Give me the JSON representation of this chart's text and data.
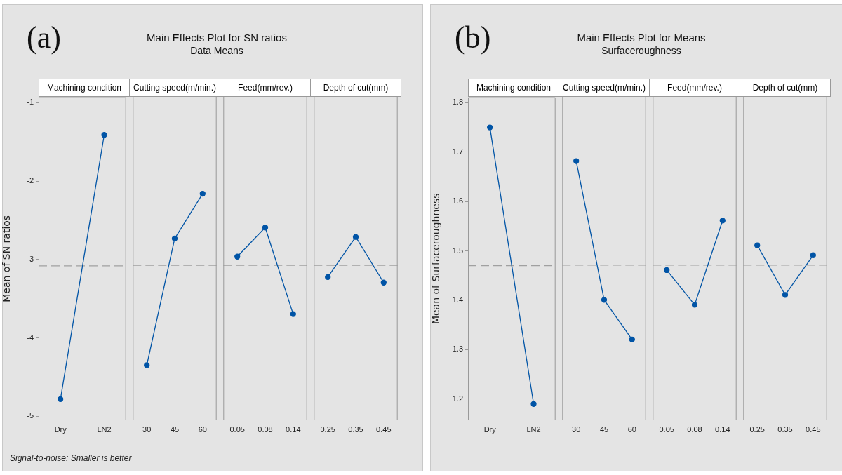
{
  "chart_data": [
    {
      "type": "line",
      "title": "Machining condition",
      "ylabel": "Mean of SN ratios",
      "categories": [
        "Dry",
        "LN2"
      ],
      "values": [
        -4.78,
        -1.41
      ],
      "color": "#0054a6",
      "marker": "circle",
      "line_style": "solid",
      "ylim": [
        -5.05,
        -0.93
      ],
      "yticks": [
        -5,
        -4,
        -3,
        -2,
        -1
      ],
      "ref_lines": [
        {
          "axis": "y",
          "value": -3.08,
          "color": "#a0a0a0",
          "line_style": "dashed"
        }
      ],
      "annotations": [
        "(a)",
        "Main Effects Plot for SN ratios",
        "Data Means",
        "Signal-to-noise: Smaller is better"
      ]
    },
    {
      "type": "line",
      "title": "Cutting speed(m/min.)",
      "categories": [
        "30",
        "45",
        "60"
      ],
      "values": [
        -4.35,
        -2.74,
        -2.17
      ],
      "color": "#0054a6",
      "marker": "circle",
      "line_style": "solid",
      "ylim": [
        -5.05,
        -0.93
      ],
      "yticks": [
        -5,
        -4,
        -3,
        -2,
        -1
      ],
      "tick_labels": "x",
      "ref_lines": [
        {
          "axis": "y",
          "value": -3.08,
          "color": "#a0a0a0",
          "line_style": "dashed"
        }
      ]
    },
    {
      "type": "line",
      "title": "Feed(mm/rev.)",
      "categories": [
        "0.05",
        "0.08",
        "0.14"
      ],
      "values": [
        -2.97,
        -2.6,
        -3.7
      ],
      "color": "#0054a6",
      "marker": "circle",
      "line_style": "solid",
      "ylim": [
        -5.05,
        -0.93
      ],
      "yticks": [
        -5,
        -4,
        -3,
        -2,
        -1
      ],
      "tick_labels": "x",
      "ref_lines": [
        {
          "axis": "y",
          "value": -3.08,
          "color": "#a0a0a0",
          "line_style": "dashed"
        }
      ]
    },
    {
      "type": "line",
      "title": "Depth of cut(mm)",
      "categories": [
        "0.25",
        "0.35",
        "0.45"
      ],
      "values": [
        -3.23,
        -2.72,
        -3.3
      ],
      "color": "#0054a6",
      "marker": "circle",
      "line_style": "solid",
      "ylim": [
        -5.05,
        -0.93
      ],
      "yticks": [
        -5,
        -4,
        -3,
        -2,
        -1
      ],
      "tick_labels": "x",
      "ref_lines": [
        {
          "axis": "y",
          "value": -3.08,
          "color": "#a0a0a0",
          "line_style": "dashed"
        }
      ]
    },
    {
      "type": "line",
      "title": "Machining condition",
      "ylabel": "Mean of Surfaceroughness",
      "categories": [
        "Dry",
        "LN2"
      ],
      "values": [
        1.75,
        1.19
      ],
      "color": "#0054a6",
      "marker": "circle",
      "line_style": "solid",
      "ylim": [
        1.157,
        1.811
      ],
      "yticks": [
        1.2,
        1.3,
        1.4,
        1.5,
        1.6,
        1.7,
        1.8
      ],
      "ref_lines": [
        {
          "axis": "y",
          "value": 1.47,
          "color": "#a0a0a0",
          "line_style": "dashed"
        }
      ],
      "annotations": [
        "(b)",
        "Main Effects Plot for Means",
        "Surfaceroughness"
      ]
    },
    {
      "type": "line",
      "title": "Cutting speed(m/min.)",
      "categories": [
        "30",
        "45",
        "60"
      ],
      "values": [
        1.68,
        1.4,
        1.32
      ],
      "color": "#0054a6",
      "marker": "circle",
      "line_style": "solid",
      "ylim": [
        1.157,
        1.811
      ],
      "yticks": [
        1.2,
        1.3,
        1.4,
        1.5,
        1.6,
        1.7,
        1.8
      ],
      "tick_labels": "x",
      "ref_lines": [
        {
          "axis": "y",
          "value": 1.47,
          "color": "#a0a0a0",
          "line_style": "dashed"
        }
      ]
    },
    {
      "type": "line",
      "title": "Feed(mm/rev.)",
      "categories": [
        "0.05",
        "0.08",
        "0.14"
      ],
      "values": [
        1.46,
        1.39,
        1.56
      ],
      "color": "#0054a6",
      "marker": "circle",
      "line_style": "solid",
      "ylim": [
        1.157,
        1.811
      ],
      "yticks": [
        1.2,
        1.3,
        1.4,
        1.5,
        1.6,
        1.7,
        1.8
      ],
      "tick_labels": "x",
      "ref_lines": [
        {
          "axis": "y",
          "value": 1.47,
          "color": "#a0a0a0",
          "line_style": "dashed"
        }
      ]
    },
    {
      "type": "line",
      "title": "Depth of cut(mm)",
      "categories": [
        "0.25",
        "0.35",
        "0.45"
      ],
      "values": [
        1.51,
        1.41,
        1.49
      ],
      "color": "#0054a6",
      "marker": "circle",
      "line_style": "solid",
      "ylim": [
        1.157,
        1.811
      ],
      "yticks": [
        1.2,
        1.3,
        1.4,
        1.5,
        1.6,
        1.7,
        1.8
      ],
      "tick_labels": "x",
      "ref_lines": [
        {
          "axis": "y",
          "value": 1.47,
          "color": "#a0a0a0",
          "line_style": "dashed"
        }
      ]
    }
  ]
}
